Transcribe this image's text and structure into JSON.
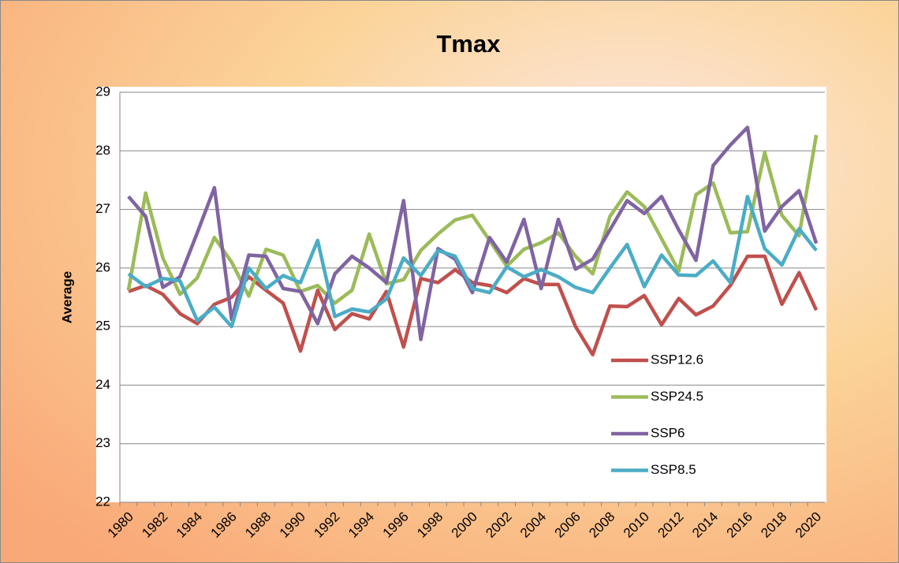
{
  "chart_data": {
    "type": "line",
    "title": "Tmax",
    "y_label": "Average",
    "categories": [
      "1980",
      null,
      "1982",
      null,
      "1984",
      null,
      "1986",
      null,
      "1988",
      null,
      "1990",
      null,
      "1992",
      null,
      "1994",
      null,
      "1996",
      null,
      "1998",
      null,
      "2000",
      null,
      "2002",
      null,
      "2004",
      null,
      "2006",
      null,
      "2008",
      null,
      "2010",
      null,
      "2012",
      null,
      "2014",
      null,
      "2016",
      null,
      "2018",
      null,
      "2020"
    ],
    "series": [
      {
        "name": "SSP12.6",
        "color": "#c0504d",
        "values": [
          25.6,
          25.7,
          25.55,
          25.22,
          25.05,
          25.38,
          25.5,
          25.85,
          25.62,
          25.4,
          24.58,
          25.62,
          24.95,
          25.22,
          25.13,
          25.6,
          24.65,
          25.82,
          25.75,
          25.97,
          25.75,
          25.7,
          25.58,
          25.82,
          25.72,
          25.72,
          25.0,
          24.52,
          25.35,
          25.34,
          25.53,
          25.03,
          25.48,
          25.2,
          25.35,
          25.7,
          26.2,
          26.2,
          25.38,
          25.92,
          25.28
        ]
      },
      {
        "name": "SSP24.5",
        "color": "#9bbb59",
        "values": [
          25.62,
          27.28,
          26.17,
          25.55,
          25.83,
          26.52,
          26.1,
          25.52,
          26.32,
          26.22,
          25.6,
          25.7,
          25.4,
          25.62,
          26.58,
          25.73,
          25.8,
          26.3,
          26.58,
          26.82,
          26.9,
          26.47,
          26.03,
          26.32,
          26.43,
          26.6,
          26.2,
          25.9,
          26.88,
          27.3,
          27.05,
          26.5,
          25.95,
          27.25,
          27.45,
          26.6,
          26.62,
          27.97,
          26.9,
          26.55,
          28.27
        ]
      },
      {
        "name": "SSP6",
        "color": "#8064a2",
        "values": [
          27.22,
          26.88,
          25.67,
          25.85,
          26.6,
          27.37,
          25.12,
          26.22,
          26.2,
          25.65,
          25.6,
          25.05,
          25.9,
          26.2,
          26.0,
          25.75,
          27.15,
          24.78,
          26.33,
          26.15,
          25.58,
          26.52,
          26.1,
          26.83,
          25.65,
          26.83,
          25.98,
          26.15,
          26.65,
          27.15,
          26.93,
          27.22,
          26.65,
          26.13,
          27.75,
          28.1,
          28.4,
          26.63,
          27.05,
          27.32,
          26.42
        ]
      },
      {
        "name": "SSP8.5",
        "color": "#4bacc6",
        "values": [
          25.9,
          25.68,
          25.82,
          25.78,
          25.1,
          25.33,
          25.0,
          26.0,
          25.65,
          25.87,
          25.75,
          26.47,
          25.17,
          25.3,
          25.25,
          25.47,
          26.17,
          25.87,
          26.3,
          26.2,
          25.65,
          25.58,
          26.02,
          25.85,
          25.97,
          25.85,
          25.67,
          25.58,
          26.0,
          26.4,
          25.68,
          26.22,
          25.88,
          25.87,
          26.12,
          25.75,
          27.22,
          26.33,
          26.05,
          26.67,
          26.3
        ]
      }
    ],
    "ylim": [
      22,
      29
    ],
    "yticks": [
      22,
      23,
      24,
      25,
      26,
      27,
      28,
      29
    ],
    "grid": true,
    "legend": "right"
  }
}
